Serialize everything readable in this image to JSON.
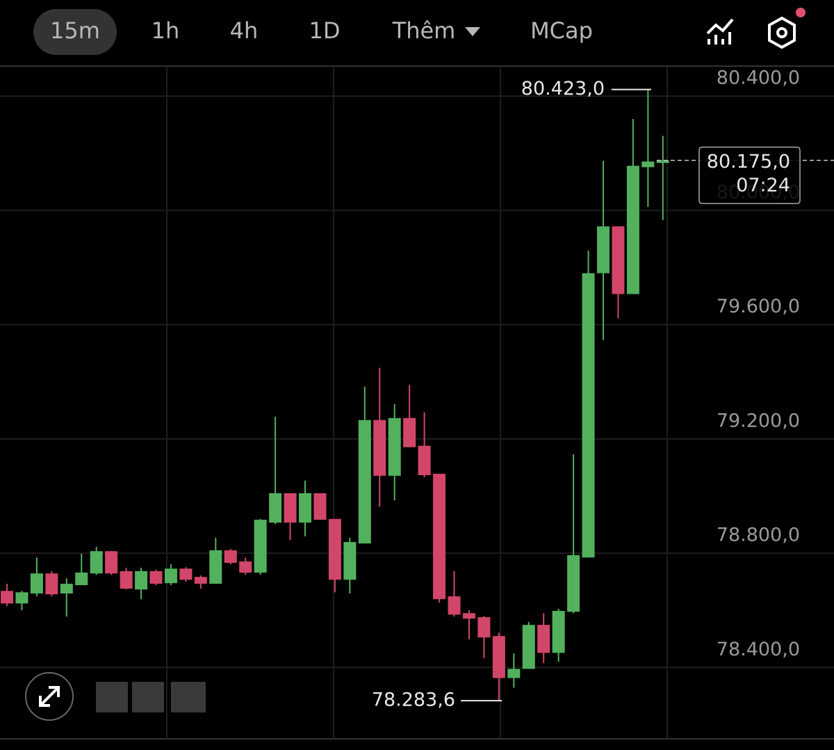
{
  "toolbar": {
    "tabs": [
      "15m",
      "1h",
      "4h",
      "1D",
      "Thêm",
      "MCap"
    ],
    "active": 0
  },
  "chart_data": {
    "type": "candlestick",
    "categories": [
      null,
      null,
      null,
      null,
      null,
      null,
      null,
      null,
      null,
      null,
      null,
      null,
      null,
      null,
      null,
      null,
      null,
      null,
      null,
      null,
      null,
      null,
      null,
      null,
      null,
      null,
      null,
      null,
      null,
      null,
      null,
      null,
      null,
      null,
      null,
      null,
      null,
      null,
      null,
      null,
      null,
      null,
      null,
      null,
      null
    ],
    "open": [
      78668,
      78624,
      78659,
      78729,
      78659,
      78688,
      78729,
      78807,
      78737,
      78673,
      78737,
      78695,
      78746,
      78717,
      78693,
      78810,
      78771,
      78732,
      78907,
      79010,
      78907,
      79010,
      78920,
      78707,
      78834,
      79266,
      79071,
      79273,
      79176,
      79078,
      78649,
      78590,
      78576,
      78510,
      78363,
      78395,
      78549,
      78451,
      78595,
      78785,
      79780,
      79944,
      79707,
      80151,
      80166
    ],
    "high": [
      78693,
      78668,
      78785,
      78737,
      78712,
      78798,
      78822,
      78807,
      78749,
      78749,
      78742,
      78761,
      78751,
      78722,
      78854,
      78815,
      78785,
      78920,
      79278,
      79010,
      79054,
      79010,
      78920,
      78854,
      79383,
      79449,
      79322,
      79388,
      79293,
      79078,
      78737,
      78600,
      78580,
      78522,
      78449,
      78559,
      78590,
      78605,
      79146,
      79859,
      80173,
      79944,
      80320,
      80423,
      80261
    ],
    "low": [
      78615,
      78600,
      78649,
      78649,
      78578,
      78688,
      78724,
      78724,
      78673,
      78639,
      78688,
      78688,
      78700,
      78676,
      78693,
      78761,
      78724,
      78724,
      78902,
      78846,
      78859,
      78917,
      78663,
      78659,
      78834,
      78963,
      78985,
      79171,
      79066,
      78627,
      78578,
      78498,
      78432,
      78283.6,
      78329,
      78395,
      78415,
      78420,
      78590,
      78785,
      79546,
      79622,
      79707,
      80012,
      79966
    ],
    "close": [
      78624,
      78663,
      78729,
      78656,
      78693,
      78732,
      78807,
      78729,
      78676,
      78737,
      78693,
      78746,
      78707,
      78693,
      78810,
      78766,
      78732,
      78917,
      79010,
      78907,
      79010,
      78917,
      78707,
      78839,
      79266,
      79071,
      79273,
      79171,
      79073,
      78639,
      78585,
      78571,
      78505,
      78363,
      78395,
      78549,
      78451,
      78598,
      78793,
      79780,
      79944,
      79707,
      80156,
      80171,
      80175
    ],
    "up_color": "#53b15e",
    "down_color": "#d2466a",
    "ylim": [
      78150,
      80505
    ],
    "yticks": [
      {
        "value": 78400,
        "label": "78.400,0"
      },
      {
        "value": 78800,
        "label": "78.800,0"
      },
      {
        "value": 79200,
        "label": "79.200,0"
      },
      {
        "value": 79600,
        "label": "79.600,0"
      },
      {
        "value": 80000,
        "label": "80.000,0"
      },
      {
        "value": 80400,
        "label": "80.400,0"
      }
    ],
    "grid": true,
    "annotations": [
      {
        "value": 80423,
        "label": "80.423,0"
      },
      {
        "value": 78283.6,
        "label": "78.283,6"
      }
    ],
    "last_price": {
      "value": 80175,
      "label": "80.175,0",
      "countdown": "07:24"
    }
  }
}
